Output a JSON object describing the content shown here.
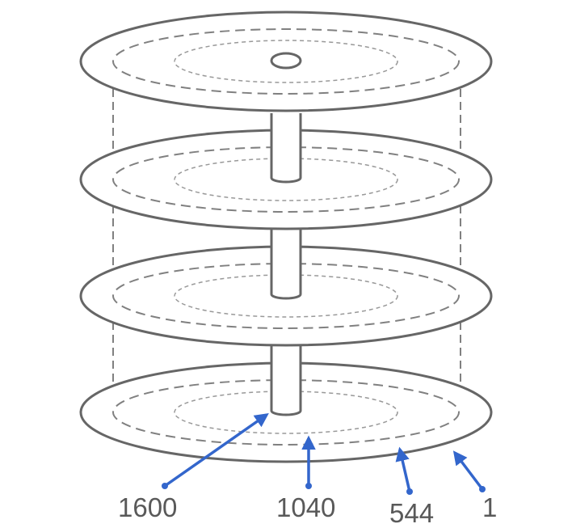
{
  "colors": {
    "outline": "#666666",
    "dashed": "#808080",
    "inner_dashed": "#999999",
    "arrow": "#3366cc",
    "label_text": "#595959"
  },
  "labels": {
    "cylinder_1600": "1600",
    "cylinder_1040": "1040",
    "cylinder_544": "544",
    "cylinder_1": "1"
  }
}
